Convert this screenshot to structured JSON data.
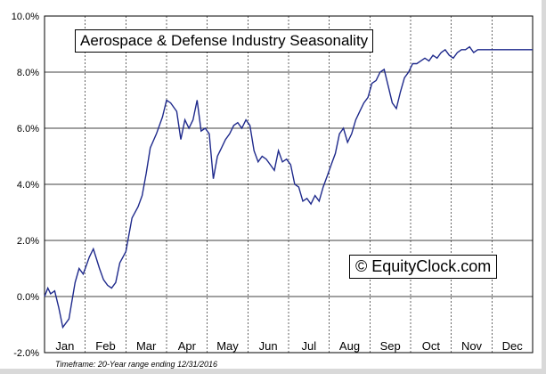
{
  "chart_data": {
    "type": "line",
    "title": "Aerospace & Defense Industry Seasonality",
    "watermark": "© EquityClock.com",
    "footnote": "Timeframe: 20-Year range ending 12/31/2016",
    "xlabel": "",
    "ylabel": "",
    "ylim": [
      -2.0,
      10.0
    ],
    "yticks": [
      "-2.0%",
      "0.0%",
      "2.0%",
      "4.0%",
      "6.0%",
      "8.0%",
      "10.0%"
    ],
    "ytick_values": [
      -2.0,
      0.0,
      2.0,
      4.0,
      6.0,
      8.0,
      10.0
    ],
    "categories": [
      "Jan",
      "Feb",
      "Mar",
      "Apr",
      "May",
      "Jun",
      "Jul",
      "Aug",
      "Sep",
      "Oct",
      "Nov",
      "Dec"
    ],
    "x_unit": "month (1 = Jan 1, 13 = Dec 31)",
    "xlim": [
      1,
      13
    ],
    "grid": "horizontal solid, vertical dashed",
    "line_color": "#1f2a8c",
    "series": [
      {
        "x": [
          1.0,
          1.08,
          1.15,
          1.25,
          1.35,
          1.45,
          1.6,
          1.75,
          1.85,
          1.95,
          2.0,
          2.1,
          2.2,
          2.35,
          2.45,
          2.55,
          2.65,
          2.75,
          2.85,
          3.0,
          3.15,
          3.3,
          3.4,
          3.5,
          3.6,
          3.75,
          3.9,
          4.0,
          4.1,
          4.25,
          4.35,
          4.45,
          4.55,
          4.65,
          4.75,
          4.85,
          4.95,
          5.05,
          5.15,
          5.25,
          5.35,
          5.45,
          5.55,
          5.65,
          5.75,
          5.85,
          5.95,
          6.05,
          6.15,
          6.25,
          6.35,
          6.45,
          6.55,
          6.65,
          6.75,
          6.85,
          6.95,
          7.05,
          7.15,
          7.25,
          7.35,
          7.45,
          7.55,
          7.65,
          7.75,
          7.85,
          7.95,
          8.05,
          8.15,
          8.25,
          8.35,
          8.45,
          8.55,
          8.65,
          8.75,
          8.85,
          8.95,
          9.05,
          9.15,
          9.25,
          9.35,
          9.45,
          9.55,
          9.65,
          9.75,
          9.85,
          9.95,
          10.05,
          10.15,
          10.25,
          10.35,
          10.45,
          10.55,
          10.65,
          10.75,
          10.85,
          10.95,
          11.05,
          11.15,
          11.25,
          11.35,
          11.45,
          11.55,
          11.65,
          11.75,
          11.85,
          11.95,
          12.05,
          12.15,
          12.25,
          12.35,
          12.45,
          12.55,
          12.65,
          12.75,
          12.85,
          12.95,
          13.0
        ],
        "y": [
          0.0,
          0.3,
          0.1,
          0.2,
          -0.4,
          -1.1,
          -0.8,
          0.5,
          1.0,
          0.8,
          1.0,
          1.4,
          1.7,
          1.0,
          0.6,
          0.4,
          0.3,
          0.5,
          1.2,
          1.6,
          2.8,
          3.2,
          3.6,
          4.4,
          5.3,
          5.8,
          6.4,
          7.0,
          6.9,
          6.6,
          5.6,
          6.3,
          6.0,
          6.3,
          7.0,
          5.9,
          6.0,
          5.8,
          4.2,
          5.0,
          5.3,
          5.6,
          5.8,
          6.1,
          6.2,
          6.0,
          6.3,
          6.1,
          5.2,
          4.8,
          5.0,
          4.9,
          4.7,
          4.5,
          5.2,
          4.8,
          4.9,
          4.7,
          4.0,
          3.9,
          3.4,
          3.5,
          3.3,
          3.6,
          3.4,
          3.9,
          4.3,
          4.7,
          5.1,
          5.8,
          6.0,
          5.5,
          5.8,
          6.3,
          6.6,
          6.9,
          7.1,
          7.6,
          7.7,
          8.0,
          8.1,
          7.5,
          6.9,
          6.7,
          7.3,
          7.8,
          8.0,
          8.3,
          8.3,
          8.4,
          8.5,
          8.4,
          8.6,
          8.5,
          8.7,
          8.8,
          8.6,
          8.5,
          8.7,
          8.8,
          8.8,
          8.9,
          8.7,
          8.8,
          8.8,
          8.8,
          8.8,
          8.8,
          8.8,
          8.8,
          8.8,
          8.8,
          8.8,
          8.8,
          8.8,
          8.8,
          8.8,
          8.8
        ]
      }
    ]
  }
}
